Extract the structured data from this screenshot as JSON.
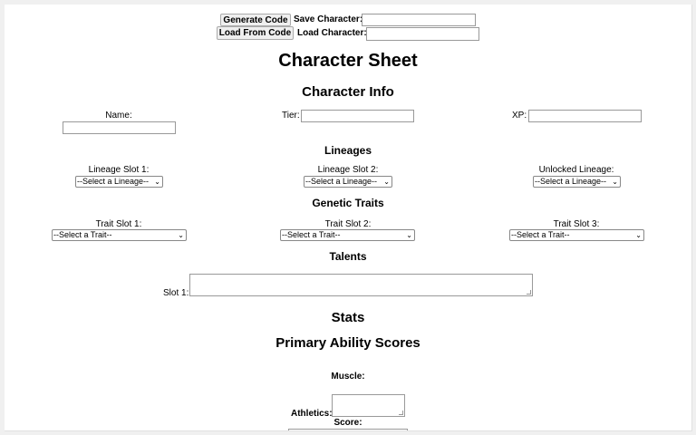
{
  "toolbar": {
    "generate_label": "Generate Code",
    "save_label": "Save Character:",
    "save_value": "",
    "load_button_label": "Load From Code",
    "load_label": "Load Character:",
    "load_value": ""
  },
  "title": "Character Sheet",
  "character_info": {
    "heading": "Character Info",
    "name_label": "Name:",
    "tier_label": "Tier:",
    "xp_label": "XP:"
  },
  "lineages": {
    "heading": "Lineages",
    "slots": [
      {
        "label": "Lineage Slot 1:",
        "selected": "--Select a Lineage--"
      },
      {
        "label": "Lineage Slot 2:",
        "selected": "--Select a Lineage--"
      },
      {
        "label": "Unlocked Lineage:",
        "selected": "--Select a Lineage--"
      }
    ]
  },
  "traits": {
    "heading": "Genetic Traits",
    "slots": [
      {
        "label": "Trait Slot 1:",
        "selected": "--Select a Trait--"
      },
      {
        "label": "Trait Slot 2:",
        "selected": "--Select a Trait--"
      },
      {
        "label": "Trait Slot 3:",
        "selected": "--Select a Trait--"
      }
    ]
  },
  "talents": {
    "heading": "Talents",
    "slot_label": "Slot 1:"
  },
  "stats": {
    "heading": "Stats",
    "primary_heading": "Primary Ability Scores",
    "muscle_label": "Muscle:",
    "athletics_label": "Athletics:",
    "score_label": "Score:"
  }
}
